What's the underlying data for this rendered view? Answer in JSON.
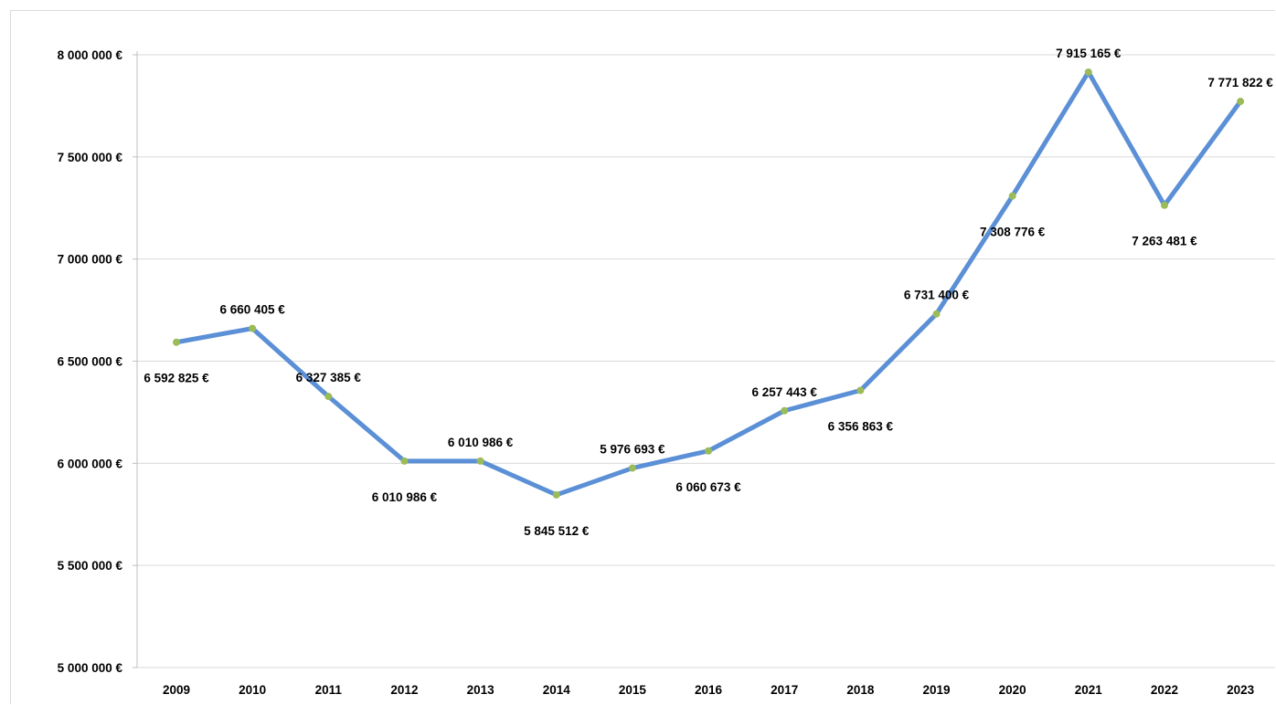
{
  "chart_data": {
    "type": "line",
    "title": "",
    "xlabel": "",
    "ylabel": "",
    "categories": [
      "2009",
      "2010",
      "2011",
      "2012",
      "2013",
      "2014",
      "2015",
      "2016",
      "2017",
      "2018",
      "2019",
      "2020",
      "2021",
      "2022",
      "2023"
    ],
    "series": [
      {
        "values": [
          6592825,
          6660405,
          6327385,
          6010986,
          6010986,
          5845512,
          5976693,
          6060673,
          6257443,
          6356863,
          6731400,
          7308776,
          7915165,
          7263481,
          7771822
        ],
        "data_labels": [
          "6 592 825 €",
          "6 660 405 €",
          "6 327 385 €",
          "6 010 986 €",
          "6 010 986 €",
          "5 845 512 €",
          "5 976 693 €",
          "6 060 673 €",
          "6 257 443 €",
          "6 356 863 €",
          "6 731 400 €",
          "7 308 776 €",
          "7 915 165 €",
          "7 263 481 €",
          "7 771 822 €"
        ],
        "label_positions": [
          "below",
          "above",
          "above",
          "below",
          "above",
          "below",
          "above",
          "below",
          "above",
          "below",
          "above",
          "below",
          "above",
          "below",
          "above"
        ],
        "line_color": "#5b8fd6",
        "marker_color": "#9bbb59"
      }
    ],
    "ylim": [
      5000000,
      8000000
    ],
    "yticks": [
      5000000,
      5500000,
      6000000,
      6500000,
      7000000,
      7500000,
      8000000
    ],
    "ytick_labels": [
      "5 000 000 €",
      "5 500 000 €",
      "6 000 000 €",
      "6 500 000 €",
      "7 000 000 €",
      "7 500 000 €",
      "8 000 000 €"
    ],
    "grid": true,
    "gridline_color": "#d9d9d9",
    "legend": "none"
  }
}
